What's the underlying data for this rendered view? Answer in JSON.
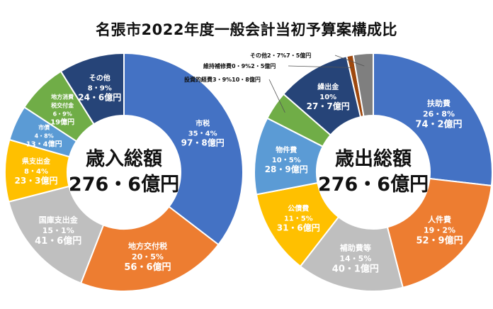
{
  "title": "名張市2022年度一般会計当初予算案構成比",
  "chart_data": [
    {
      "type": "pie",
      "donut": true,
      "center_label": [
        "歳入総額",
        "276・6億円"
      ],
      "slices": [
        {
          "name": "市税",
          "percent_text": "35・4%",
          "amount_text": "97・8億円",
          "value": 35.4,
          "color": "#4472c4",
          "text_color": "#ffffff"
        },
        {
          "name": "地方交付税",
          "percent_text": "20・5%",
          "amount_text": "56・6億円",
          "value": 20.5,
          "color": "#ed7d31",
          "text_color": "#ffffff"
        },
        {
          "name": "国庫支出金",
          "percent_text": "15・1%",
          "amount_text": "41・6億円",
          "value": 15.1,
          "color": "#bfbfbf",
          "text_color": "#ffffff"
        },
        {
          "name": "県支出金",
          "percent_text": "8・4%",
          "amount_text": "23・3億円",
          "value": 8.4,
          "color": "#ffc000",
          "text_color": "#ffffff"
        },
        {
          "name": "市債",
          "percent_text": "4・8%",
          "amount_text": "13・4億円",
          "value": 4.8,
          "color": "#5b9bd5",
          "text_color": "#ffffff"
        },
        {
          "name": "地方消費税交付金",
          "percent_text": "6・9%",
          "amount_text": "19億円",
          "value": 6.9,
          "color": "#70ad47",
          "text_color": "#ffffff"
        },
        {
          "name": "その他",
          "percent_text": "8・9%",
          "amount_text": "24・6億円",
          "value": 8.9,
          "color": "#264478",
          "text_color": "#ffffff"
        }
      ]
    },
    {
      "type": "pie",
      "donut": true,
      "center_label": [
        "歳出総額",
        "276・6億円"
      ],
      "slices": [
        {
          "name": "扶助費",
          "percent_text": "26・8%",
          "amount_text": "74・2億円",
          "value": 26.8,
          "color": "#4472c4",
          "text_color": "#ffffff"
        },
        {
          "name": "人件費",
          "percent_text": "19・2%",
          "amount_text": "52・9億円",
          "value": 19.2,
          "color": "#ed7d31",
          "text_color": "#ffffff"
        },
        {
          "name": "補助費等",
          "percent_text": "14・5%",
          "amount_text": "40・1億円",
          "value": 14.5,
          "color": "#bfbfbf",
          "text_color": "#ffffff"
        },
        {
          "name": "公債費",
          "percent_text": "11・5%",
          "amount_text": "31・6億円",
          "value": 11.5,
          "color": "#ffc000",
          "text_color": "#ffffff"
        },
        {
          "name": "物件費",
          "percent_text": "10・5%",
          "amount_text": "28・9億円",
          "value": 10.5,
          "color": "#5b9bd5",
          "text_color": "#ffffff"
        },
        {
          "name": "投資的経費",
          "percent_text": "3・9%",
          "amount_text": "10・8億円",
          "value": 3.9,
          "color": "#70ad47",
          "text_color": "#111111"
        },
        {
          "name": "繰出金",
          "percent_text": "10%",
          "amount_text": "27・7億円",
          "value": 10.0,
          "color": "#264478",
          "text_color": "#ffffff"
        },
        {
          "name": "維持補修費",
          "percent_text": "0・9%",
          "amount_text": "2・5億円",
          "value": 0.9,
          "color": "#9e480e",
          "text_color": "#111111"
        },
        {
          "name": "その他",
          "percent_text": "2・7%",
          "amount_text": "7・5億円",
          "value": 2.7,
          "color": "#7f7f7f",
          "text_color": "#111111"
        }
      ]
    }
  ]
}
